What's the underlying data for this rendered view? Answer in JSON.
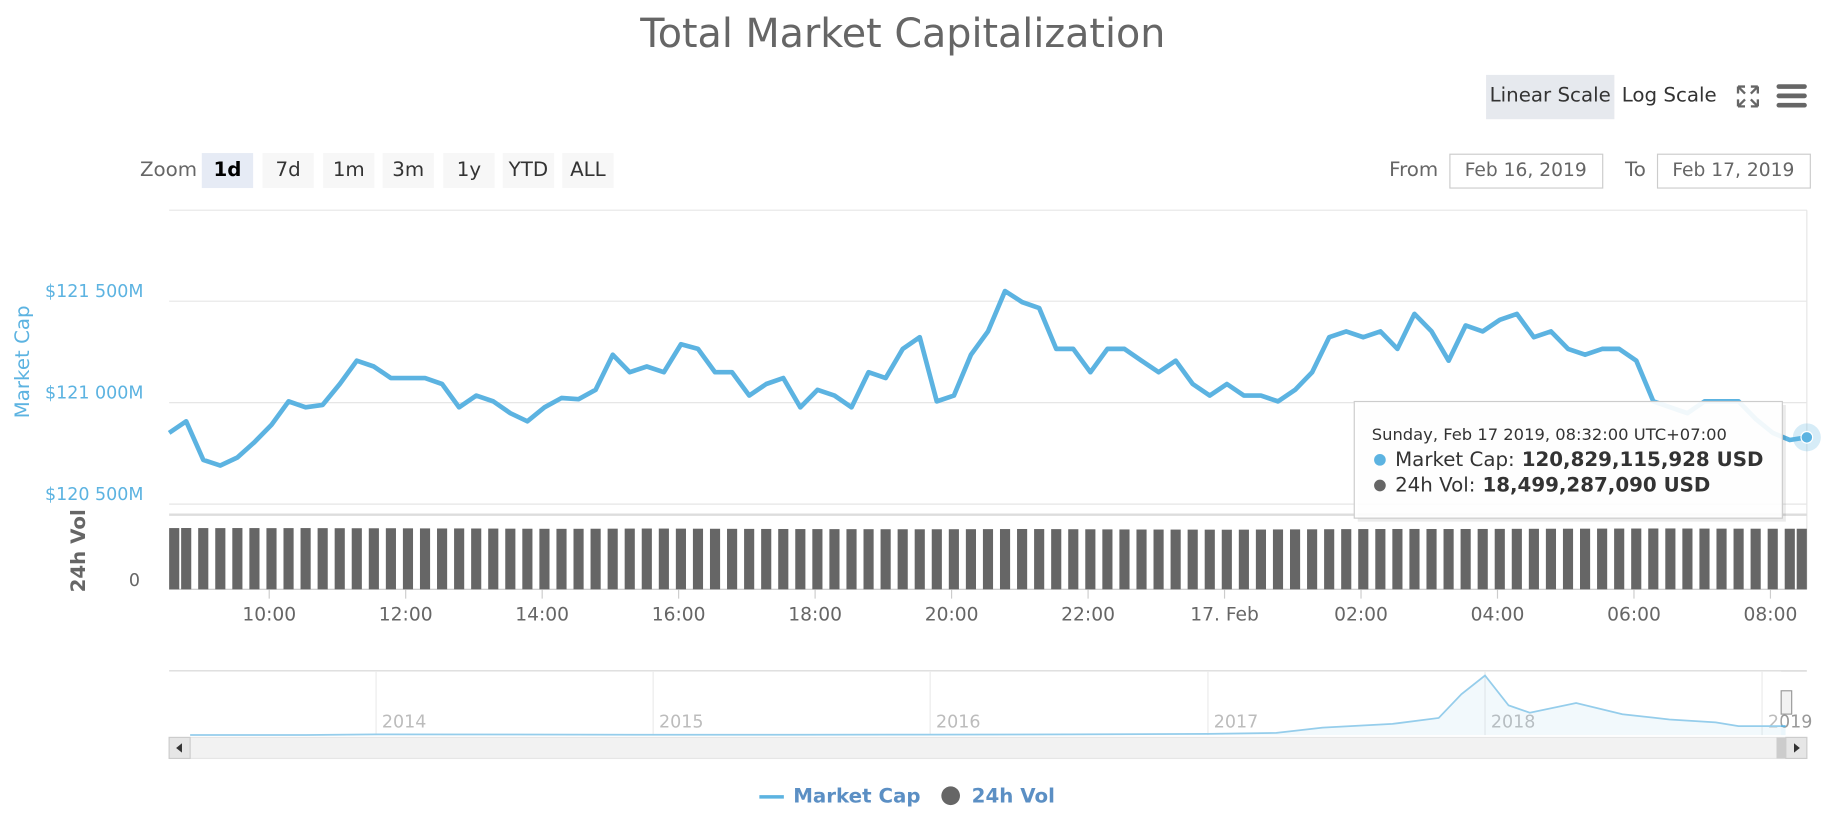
{
  "chart_data": {
    "type": "line",
    "title": "Total Market Capitalization",
    "scale_buttons": [
      "Linear Scale",
      "Log Scale"
    ],
    "zoom_label": "Zoom",
    "zoom_buttons": [
      "1d",
      "7d",
      "1m",
      "3m",
      "1y",
      "YTD",
      "ALL"
    ],
    "from_label": "From",
    "from_value": "Feb 16, 2019",
    "to_label": "To",
    "to_value": "Feb 17, 2019",
    "y_label": "Market Cap",
    "y2_label": "24h Vol",
    "xlim": [
      "2019-02-16T08:32",
      "2019-02-17T08:32"
    ],
    "xticks": [
      {
        "value": "2019-02-16T10:00",
        "label": "10:00"
      },
      {
        "value": "2019-02-16T12:00",
        "label": "12:00"
      },
      {
        "value": "2019-02-16T14:00",
        "label": "14:00"
      },
      {
        "value": "2019-02-16T16:00",
        "label": "16:00"
      },
      {
        "value": "2019-02-16T18:00",
        "label": "18:00"
      },
      {
        "value": "2019-02-16T20:00",
        "label": "20:00"
      },
      {
        "value": "2019-02-16T22:00",
        "label": "22:00"
      },
      {
        "value": "2019-02-17T00:00",
        "label": "17. Feb"
      },
      {
        "value": "2019-02-17T02:00",
        "label": "02:00"
      },
      {
        "value": "2019-02-17T04:00",
        "label": "04:00"
      },
      {
        "value": "2019-02-17T06:00",
        "label": "06:00"
      },
      {
        "value": "2019-02-17T08:00",
        "label": "08:00"
      }
    ],
    "ylim": [
      120454,
      121948
    ],
    "yticks": [
      {
        "value": 120500,
        "label": "$120 500M"
      },
      {
        "value": 121000,
        "label": "$121 000M"
      },
      {
        "value": 121500,
        "label": "$121 500M"
      }
    ],
    "y2lim": [
      0,
      22800
    ],
    "y2ticks": [
      0
    ],
    "grid": true,
    "x": [
      "2019-02-16T08:32",
      "2019-02-16T08:47",
      "2019-02-16T09:02",
      "2019-02-16T09:17",
      "2019-02-16T09:32",
      "2019-02-16T09:47",
      "2019-02-16T10:02",
      "2019-02-16T10:17",
      "2019-02-16T10:32",
      "2019-02-16T10:47",
      "2019-02-16T11:02",
      "2019-02-16T11:17",
      "2019-02-16T11:32",
      "2019-02-16T11:47",
      "2019-02-16T12:02",
      "2019-02-16T12:17",
      "2019-02-16T12:32",
      "2019-02-16T12:47",
      "2019-02-16T13:02",
      "2019-02-16T13:17",
      "2019-02-16T13:32",
      "2019-02-16T13:47",
      "2019-02-16T14:02",
      "2019-02-16T14:17",
      "2019-02-16T14:32",
      "2019-02-16T14:47",
      "2019-02-16T15:02",
      "2019-02-16T15:17",
      "2019-02-16T15:32",
      "2019-02-16T15:47",
      "2019-02-16T16:02",
      "2019-02-16T16:17",
      "2019-02-16T16:32",
      "2019-02-16T16:47",
      "2019-02-16T17:02",
      "2019-02-16T17:17",
      "2019-02-16T17:32",
      "2019-02-16T17:47",
      "2019-02-16T18:02",
      "2019-02-16T18:17",
      "2019-02-16T18:32",
      "2019-02-16T18:47",
      "2019-02-16T19:02",
      "2019-02-16T19:17",
      "2019-02-16T19:32",
      "2019-02-16T19:47",
      "2019-02-16T20:02",
      "2019-02-16T20:17",
      "2019-02-16T20:32",
      "2019-02-16T20:47",
      "2019-02-16T21:02",
      "2019-02-16T21:17",
      "2019-02-16T21:32",
      "2019-02-16T21:47",
      "2019-02-16T22:02",
      "2019-02-16T22:17",
      "2019-02-16T22:32",
      "2019-02-16T22:47",
      "2019-02-16T23:02",
      "2019-02-16T23:17",
      "2019-02-16T23:32",
      "2019-02-16T23:47",
      "2019-02-17T00:02",
      "2019-02-17T00:17",
      "2019-02-17T00:32",
      "2019-02-17T00:47",
      "2019-02-17T01:02",
      "2019-02-17T01:17",
      "2019-02-17T01:32",
      "2019-02-17T01:47",
      "2019-02-17T02:02",
      "2019-02-17T02:17",
      "2019-02-17T02:32",
      "2019-02-17T02:47",
      "2019-02-17T03:02",
      "2019-02-17T03:17",
      "2019-02-17T03:32",
      "2019-02-17T03:47",
      "2019-02-17T04:02",
      "2019-02-17T04:17",
      "2019-02-17T04:32",
      "2019-02-17T04:47",
      "2019-02-17T05:02",
      "2019-02-17T05:17",
      "2019-02-17T05:32",
      "2019-02-17T05:47",
      "2019-02-17T06:02",
      "2019-02-17T06:17",
      "2019-02-17T06:32",
      "2019-02-17T06:47",
      "2019-02-17T07:02",
      "2019-02-17T07:17",
      "2019-02-17T07:32",
      "2019-02-17T07:47",
      "2019-02-17T08:02",
      "2019-02-17T08:17",
      "2019-02-17T08:32"
    ],
    "series": [
      {
        "name": "Market Cap",
        "color": "#5cb3e1",
        "values": [
          120851,
          120908,
          120718,
          120690,
          120730,
          120805,
          120891,
          121006,
          120977,
          120989,
          121092,
          121207,
          121178,
          121121,
          121121,
          121121,
          121092,
          120977,
          121035,
          121006,
          120948,
          120908,
          120977,
          121023,
          121017,
          121063,
          121236,
          121150,
          121178,
          121150,
          121288,
          121265,
          121150,
          121150,
          121035,
          121092,
          121121,
          120977,
          121063,
          121035,
          120977,
          121150,
          121121,
          121265,
          121322,
          121006,
          121035,
          121236,
          121351,
          121550,
          121495,
          121466,
          121265,
          121265,
          121150,
          121265,
          121265,
          121207,
          121150,
          121207,
          121092,
          121035,
          121092,
          121035,
          121035,
          121006,
          121063,
          121150,
          121322,
          121351,
          121322,
          121351,
          121265,
          121437,
          121351,
          121207,
          121380,
          121351,
          121408,
          121437,
          121322,
          121351,
          121265,
          121236,
          121265,
          121265,
          121207,
          121006,
          120977,
          120948,
          121006,
          121006,
          121006,
          120920,
          120851,
          120816,
          120829.1
        ]
      },
      {
        "name": "24h Vol",
        "color": "#666666",
        "axis": "y2",
        "type": "bar",
        "values": [
          18700,
          18720,
          18700,
          18690,
          18710,
          18700,
          18680,
          18690,
          18700,
          18680,
          18660,
          18650,
          18640,
          18650,
          18620,
          18600,
          18580,
          18590,
          18570,
          18550,
          18520,
          18500,
          18480,
          18470,
          18480,
          18500,
          18520,
          18540,
          18560,
          18550,
          18530,
          18510,
          18490,
          18470,
          18450,
          18430,
          18420,
          18400,
          18390,
          18380,
          18370,
          18360,
          18350,
          18340,
          18330,
          18340,
          18350,
          18360,
          18380,
          18400,
          18420,
          18400,
          18380,
          18350,
          18330,
          18300,
          18280,
          18260,
          18250,
          18240,
          18230,
          18220,
          18200,
          18220,
          18250,
          18280,
          18300,
          18320,
          18350,
          18380,
          18400,
          18410,
          18420,
          18430,
          18420,
          18410,
          18420,
          18430,
          18450,
          18470,
          18480,
          18500,
          18510,
          18520,
          18540,
          18550,
          18560,
          18570,
          18580,
          18560,
          18540,
          18530,
          18520,
          18510,
          18500,
          18500,
          18499
        ]
      }
    ],
    "tooltip": {
      "header": "Sunday, Feb 17 2019, 08:32:00 UTC+07:00",
      "rows": [
        {
          "label": "Market Cap:",
          "value": "120,829,115,928 USD"
        },
        {
          "label": "24h Vol:",
          "value": "18,499,287,090 USD"
        }
      ]
    },
    "navigator": {
      "xlim": [
        "2013-05",
        "2019-03"
      ],
      "ylim": [
        0,
        830000
      ],
      "xticks": [
        {
          "value": "2014-01",
          "label": "2014"
        },
        {
          "value": "2015-01",
          "label": "2015"
        },
        {
          "value": "2016-01",
          "label": "2016"
        },
        {
          "value": "2017-01",
          "label": "2017"
        },
        {
          "value": "2018-01",
          "label": "2018"
        },
        {
          "value": "2019-01",
          "label": "2019"
        }
      ],
      "x": [
        "2013-05",
        "2013-10",
        "2014-01",
        "2014-07",
        "2015-01",
        "2015-07",
        "2016-01",
        "2016-07",
        "2017-01",
        "2017-04",
        "2017-06",
        "2017-09",
        "2017-11",
        "2017-12",
        "2018-01",
        "2018-02",
        "2018-03",
        "2018-05",
        "2018-07",
        "2018-09",
        "2018-11",
        "2018-12",
        "2019-02"
      ],
      "values": [
        1500,
        2000,
        10000,
        8000,
        4000,
        4000,
        7000,
        10000,
        17000,
        30000,
        100000,
        150000,
        230000,
        550000,
        800000,
        400000,
        300000,
        430000,
        280000,
        210000,
        170000,
        120000,
        121000
      ]
    }
  }
}
